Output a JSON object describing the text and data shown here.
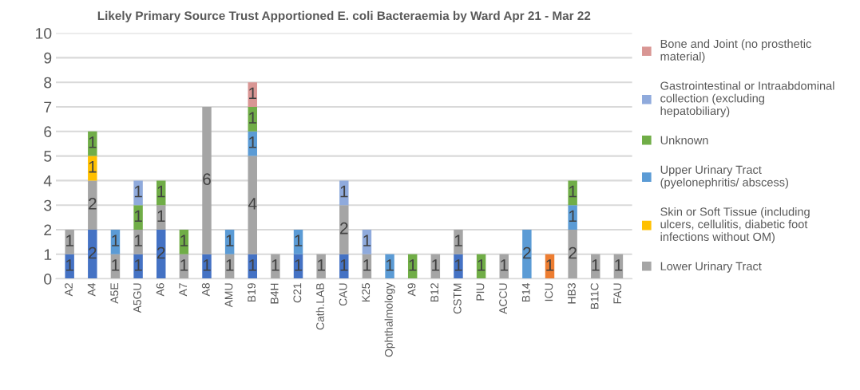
{
  "chart_data": {
    "type": "bar",
    "stacked": true,
    "title": "Likely Primary Source Trust Apportioned E. coli Bacteraemia by Ward Apr 21 - Mar 22",
    "categories": [
      "A2",
      "A4",
      "A5E",
      "A5GU",
      "A6",
      "A7",
      "A8",
      "AMU",
      "B19",
      "B4H",
      "C21",
      "Cath.LAB",
      "CAU",
      "K25",
      "Ophthalmology",
      "A9",
      "B12",
      "CSTM",
      "PIU",
      "ACCU",
      "B14",
      "ICU",
      "HB3",
      "B11C",
      "FAU"
    ],
    "series": [
      {
        "color": "#4472c4",
        "values": [
          1,
          2,
          null,
          1,
          2,
          null,
          1,
          null,
          1,
          null,
          1,
          null,
          1,
          null,
          null,
          null,
          null,
          1,
          null,
          null,
          null,
          null,
          null,
          null,
          null
        ]
      },
      {
        "color": "#ed7d31",
        "values": [
          null,
          null,
          null,
          null,
          null,
          null,
          null,
          null,
          null,
          null,
          null,
          null,
          null,
          null,
          null,
          null,
          null,
          null,
          null,
          null,
          null,
          1,
          null,
          null,
          null
        ]
      },
      {
        "name": "Lower Urinary Tract",
        "color": "#a5a5a5",
        "values": [
          1,
          2,
          1,
          1,
          1,
          1,
          6,
          1,
          4,
          1,
          null,
          1,
          2,
          1,
          null,
          null,
          1,
          1,
          null,
          1,
          null,
          null,
          2,
          1,
          1
        ]
      },
      {
        "name": "Skin or Soft Tissue (including ulcers, cellulitis, diabetic foot infections without OM)",
        "color": "#ffc000",
        "values": [
          null,
          1,
          null,
          null,
          null,
          null,
          null,
          null,
          null,
          null,
          null,
          null,
          null,
          null,
          null,
          null,
          null,
          null,
          null,
          null,
          null,
          null,
          null,
          null,
          null
        ]
      },
      {
        "name": "Upper Urinary Tract (pyelonephritis/ abscess)",
        "color": "#5b9bd5",
        "values": [
          null,
          null,
          1,
          null,
          null,
          null,
          null,
          1,
          1,
          null,
          1,
          null,
          null,
          null,
          1,
          null,
          null,
          null,
          null,
          null,
          2,
          null,
          1,
          null,
          null
        ]
      },
      {
        "name": "Unknown",
        "color": "#70ad47",
        "values": [
          null,
          1,
          null,
          1,
          1,
          1,
          null,
          null,
          1,
          null,
          null,
          null,
          null,
          null,
          null,
          1,
          null,
          null,
          1,
          null,
          null,
          null,
          1,
          null,
          null
        ]
      },
      {
        "name": "Gastrointestinal or Intraabdominal collection (excluding hepatobiliary)",
        "color": "#8faadc",
        "values": [
          null,
          null,
          null,
          1,
          null,
          null,
          null,
          null,
          null,
          null,
          null,
          null,
          1,
          1,
          null,
          null,
          null,
          null,
          null,
          null,
          null,
          null,
          null,
          null,
          null
        ]
      },
      {
        "name": "Bone and Joint (no prosthetic material)",
        "color": "#d99694",
        "values": [
          null,
          null,
          null,
          null,
          null,
          null,
          null,
          null,
          1,
          null,
          null,
          null,
          null,
          null,
          null,
          null,
          null,
          null,
          null,
          null,
          null,
          null,
          null,
          null,
          null
        ]
      }
    ],
    "ylim": [
      0,
      10
    ],
    "yticks": [
      0,
      1,
      2,
      3,
      4,
      5,
      6,
      7,
      8,
      9,
      10
    ],
    "grid": "y",
    "legend": "right",
    "data_labels": true
  }
}
